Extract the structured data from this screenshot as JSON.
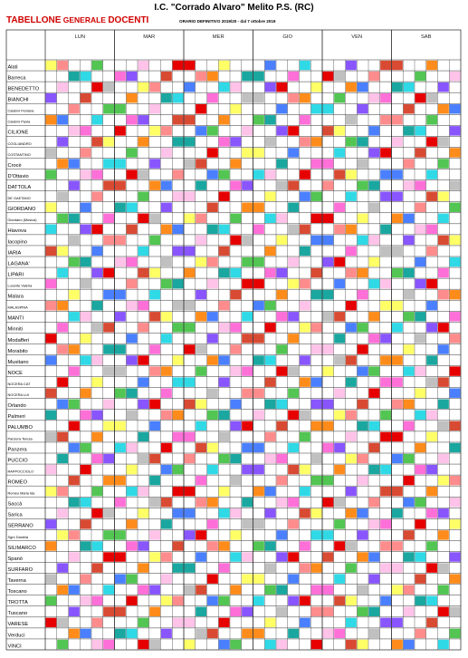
{
  "header": {
    "title": "I.C. \"Corrado Alvaro\" Melito P.S. (RC)",
    "heading_part1": "TABELLONE",
    "heading_part2": " GENERALE ",
    "heading_part3": "DOCENTI",
    "subheading": "ORARIO DEFINITIVO 2019/20 - dal 7 ottobre 2019"
  },
  "days": [
    "LUN",
    "MAR",
    "MER",
    "GIO",
    "VEN",
    "SAB"
  ],
  "colors": {
    "Y": "#ffff66",
    "P": "#ff8c8c",
    "O": "#ff8c1a",
    "B": "#4a80ff",
    "G": "#52c552",
    "T": "#1aa7a0",
    "C": "#2fd9e6",
    "K": "#ffc2e8",
    "M": "#ff6fd8",
    "V": "#8855ff",
    "R": "#e60000",
    "L": "#c0c0c0",
    "A": "#aaaaaa",
    "D": "#d94a33"
  },
  "teachers": [
    {
      "name": "Alati",
      "small": false,
      "slots": "|||||||||||||||||||||||||||||||||||||||||||||||||||||||||||||||||||||||||||||||||||||||||||||||||||||||||||||||||||||||||||||||||||||"
    },
    {
      "name": "Barreca",
      "small": false,
      "slots": "YYYY||||||||||||||||||||||||||||||||"
    },
    {
      "name": "BENEDETTO",
      "small": false,
      "slots": "YYYYYY|||||||||||||||||||||||||||||"
    },
    {
      "name": "BIANCHI",
      "small": false,
      "slots": "OOOOOO|||||||||||||||||||||||||||||||"
    },
    {
      "name": "Calabrò Floriana",
      "small": true,
      "slots": "GGGGG|||||||||||||||||||||||||||||||"
    },
    {
      "name": "Calabrò Paola",
      "small": true,
      "slots": "||||||||||||||||||||||||||||||||||||"
    },
    {
      "name": "CILIONE",
      "small": false,
      "slots": "||||||||||||||||||||||||||||||||||||"
    },
    {
      "name": "COGLIANDRO",
      "small": true,
      "slots": "||||||||||||||||||||||||||||||||||||"
    },
    {
      "name": "COSTANTINO",
      "small": true,
      "slots": "||||||||||||||||||||||||||||||||||||"
    },
    {
      "name": "Crocè",
      "small": false,
      "slots": "||||||||||||||||||||||||||||||||||||"
    },
    {
      "name": "D'Ottavio",
      "small": false,
      "slots": "||||||||||||||||||||||||||||||||||||"
    },
    {
      "name": "DATTOLA",
      "small": false,
      "slots": "||||||||||||||||||||||||||||||||||||"
    },
    {
      "name": "DE GAETANO",
      "small": true,
      "slots": "||||||||||||||||||||||||||||||||||||"
    },
    {
      "name": "GIORDANO",
      "small": false,
      "slots": "||||||||||||||||||||||||||||||||||||"
    },
    {
      "name": "Giordano (Musica)",
      "small": true,
      "slots": "||||||||||||||||||||||||||||||||||||"
    },
    {
      "name": "Hiavova",
      "small": false,
      "slots": "||||||||||||||||||||||||||||||||||||"
    },
    {
      "name": "Iacopino",
      "small": false,
      "slots": "||||||||||||||||||||||||||||||||||||"
    },
    {
      "name": "IARIA",
      "small": false,
      "slots": "||||||||||||||||||||||||||||||||||||"
    },
    {
      "name": "LAGANA'",
      "small": false,
      "slots": "||||||||||||||||||||||||||||||||||||"
    },
    {
      "name": "LIPARI",
      "small": false,
      "slots": "||||||||||||||||||||||||||||||||||||"
    },
    {
      "name": "Lucente Valeria",
      "small": true,
      "slots": "||||||||||||||||||||||||||||||||||||"
    },
    {
      "name": "Malara",
      "small": false,
      "slots": "||||||||||||||||||||||||||||||||||||"
    },
    {
      "name": "MALASPINA",
      "small": true,
      "slots": "||||||||||||||||||||||||||||||||||||"
    },
    {
      "name": "MANTI",
      "small": false,
      "slots": "||||||||||||||||||||||||||||||||||||"
    },
    {
      "name": "Minniti",
      "small": false,
      "slots": "||||||||||||||||||||||||||||||||||||"
    },
    {
      "name": "Modafferi",
      "small": false,
      "slots": "||||||||||||||||||||||||||||||||||||"
    },
    {
      "name": "Morabito",
      "small": false,
      "slots": "||||||||||||||||||||||||||||||||||||"
    },
    {
      "name": "Musitano",
      "small": false,
      "slots": "||||||||||||||||||||||||||||||||||||"
    },
    {
      "name": "NOCE",
      "small": false,
      "slots": "||||||||||||||||||||||||||||||||||||"
    },
    {
      "name": "NOCERA CAT",
      "small": true,
      "slots": "||||||||||||||||||||||||||||||||||||"
    },
    {
      "name": "NOCERA LUI",
      "small": true,
      "slots": "||||||||||||||||||||||||||||||||||||"
    },
    {
      "name": "Orlando",
      "small": false,
      "slots": "||||||||||||||||||||||||||||||||||||"
    },
    {
      "name": "Palmeri",
      "small": false,
      "slots": "||||||||||||||||||||||||||||||||||||"
    },
    {
      "name": "PALUMBO",
      "small": false,
      "slots": "||||||||||||||||||||||||||||||||||||"
    },
    {
      "name": "Panzera Teresa",
      "small": true,
      "slots": "||||||||||||||||||||||||||||||||||||"
    },
    {
      "name": "Panzera",
      "small": false,
      "slots": "||||||||||||||||||||||||||||||||||||"
    },
    {
      "name": "PUCCIO",
      "small": false,
      "slots": "||||||||||||||||||||||||||||||||||||"
    },
    {
      "name": "RAPPOCCIOLO",
      "small": true,
      "slots": "||||||||||||||||||||||||||||||||||||"
    },
    {
      "name": "ROMEO",
      "small": false,
      "slots": "||||||||||||||||||||||||||||||||||||"
    },
    {
      "name": "Romeo Maria Ida",
      "small": true,
      "slots": "||||||||||||||||||||||||||||||||||||"
    },
    {
      "name": "Saccà",
      "small": false,
      "slots": "||||||||||||||||||||||||||||||||||||"
    },
    {
      "name": "Sarica",
      "small": false,
      "slots": "||||||||||||||||||||||||||||||||||||"
    },
    {
      "name": "SERRANO",
      "small": false,
      "slots": "||||||||||||||||||||||||||||||||||||"
    },
    {
      "name": "Sgrò Daniela",
      "small": true,
      "slots": "||||||||||||||||||||||||||||||||||||"
    },
    {
      "name": "SILIMARCO",
      "small": false,
      "slots": "||||||||||||||||||||||||||||||||||||"
    },
    {
      "name": "Spanò",
      "small": false,
      "slots": "||||||||||||||||||||||||||||||||||||"
    },
    {
      "name": "SURFARO",
      "small": false,
      "slots": "||||||||||||||||||||||||||||||||||||"
    },
    {
      "name": "Taverna",
      "small": false,
      "slots": "||||||||||||||||||||||||||||||||||||"
    },
    {
      "name": "Toscano",
      "small": false,
      "slots": "||||||||||||||||||||||||||||||||||||"
    },
    {
      "name": "TROTTA",
      "small": false,
      "slots": "||||||||||||||||||||||||||||||||||||"
    },
    {
      "name": "Tuscano",
      "small": false,
      "slots": "||||||||||||||||||||||||||||||||||||"
    },
    {
      "name": "VARESE",
      "small": false,
      "slots": "||||||||||||||||||||||||||||||||||||"
    },
    {
      "name": "Verduci",
      "small": false,
      "slots": "||||||||||||||||||||||||||||||||||||"
    },
    {
      "name": "VINCI",
      "small": false,
      "slots": "||||||||||||||||||||||||||||||||||||"
    }
  ]
}
